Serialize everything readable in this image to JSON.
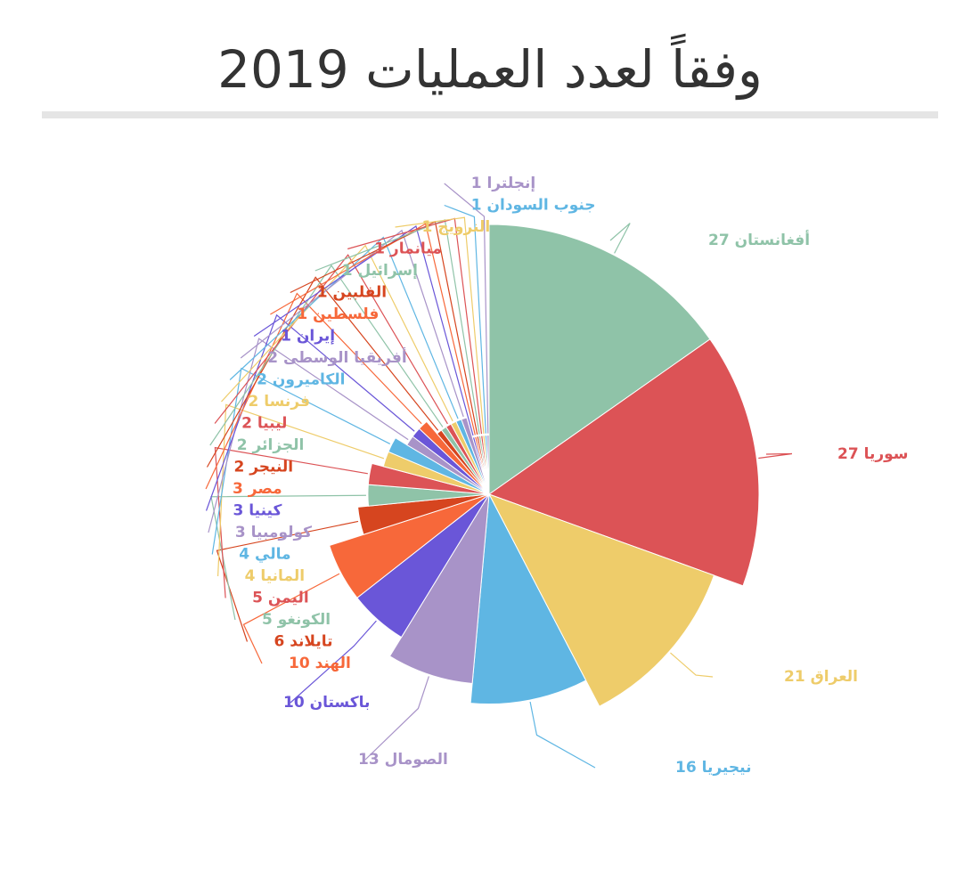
{
  "title": "وفقاً لعدد العمليات 2019",
  "chart_data": {
    "type": "pie",
    "variant": "rose",
    "title": "وفقاً لعدد العمليات 2019",
    "series": [
      {
        "name": "أفغانستان",
        "value": 27,
        "color": "#8fc3a8"
      },
      {
        "name": "سوريا",
        "value": 27,
        "color": "#dc5356"
      },
      {
        "name": "العراق",
        "value": 21,
        "color": "#eecc6a"
      },
      {
        "name": "نيجيريا",
        "value": 16,
        "color": "#5fb6e3"
      },
      {
        "name": "الصومال",
        "value": 13,
        "color": "#a893c8"
      },
      {
        "name": "باكستان",
        "value": 10,
        "color": "#6a56d8"
      },
      {
        "name": "الهند",
        "value": 10,
        "color": "#f7683a"
      },
      {
        "name": "تايلاند",
        "value": 6,
        "color": "#d6451f"
      },
      {
        "name": "الكونغو",
        "value": 5,
        "color": "#8fc3a8"
      },
      {
        "name": "اليمن",
        "value": 5,
        "color": "#dc5356"
      },
      {
        "name": "المانيا",
        "value": 4,
        "color": "#eecc6a"
      },
      {
        "name": "مالي",
        "value": 4,
        "color": "#5fb6e3"
      },
      {
        "name": "كولومبيا",
        "value": 3,
        "color": "#a893c8"
      },
      {
        "name": "كينيا",
        "value": 3,
        "color": "#6a56d8"
      },
      {
        "name": "مصر",
        "value": 3,
        "color": "#f7683a"
      },
      {
        "name": "النيجر",
        "value": 2,
        "color": "#d6451f"
      },
      {
        "name": "الجزائر",
        "value": 2,
        "color": "#8fc3a8"
      },
      {
        "name": "ليبيا",
        "value": 2,
        "color": "#dc5356"
      },
      {
        "name": "فرنسا",
        "value": 2,
        "color": "#eecc6a"
      },
      {
        "name": "الكاميرون",
        "value": 2,
        "color": "#5fb6e3"
      },
      {
        "name": "أفريقيا الوسطى",
        "value": 2,
        "color": "#a893c8"
      },
      {
        "name": "إيران",
        "value": 1,
        "color": "#6a56d8"
      },
      {
        "name": "فلسطين",
        "value": 1,
        "color": "#f7683a"
      },
      {
        "name": "الفلبين",
        "value": 1,
        "color": "#d6451f"
      },
      {
        "name": "إسرائيل",
        "value": 1,
        "color": "#8fc3a8"
      },
      {
        "name": "ميانمار",
        "value": 1,
        "color": "#dc5356"
      },
      {
        "name": "النرويج",
        "value": 1,
        "color": "#eecc6a"
      },
      {
        "name": "جنوب السودان",
        "value": 1,
        "color": "#5fb6e3"
      },
      {
        "name": "إنجلترا",
        "value": 1,
        "color": "#a893c8"
      }
    ]
  }
}
